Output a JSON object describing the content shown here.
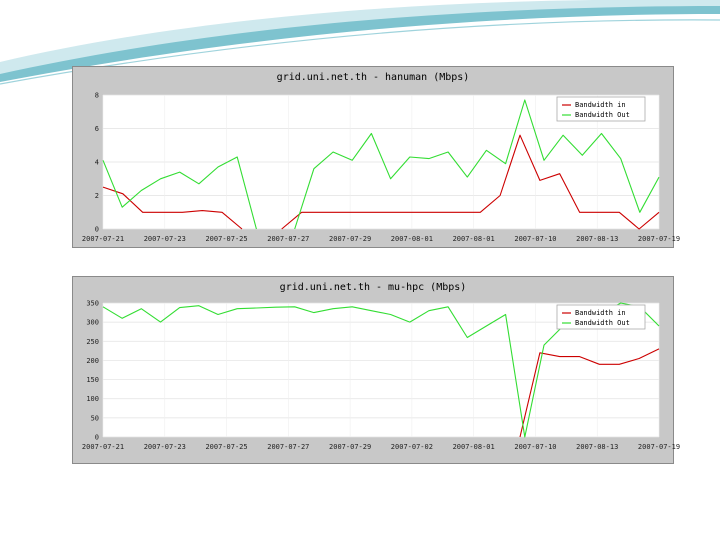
{
  "theme": {
    "deco_teal": "#7ec3cf",
    "deco_light": "#cfe9ee",
    "panel_bg": "#c8c8c8",
    "plot_bg": "#ffffff",
    "in_color": "#cc0000",
    "out_color": "#33dd33"
  },
  "chart_data": [
    {
      "type": "line",
      "title": "grid.uni.net.th - hanuman (Mbps)",
      "x_tick_labels": [
        "2007-07-21",
        "2007-07-23",
        "2007-07-25",
        "2007-07-27",
        "2007-07-29",
        "2007-08-01",
        "2007-08-01",
        "2007-07-10",
        "2007-08-13",
        "2007-07-19"
      ],
      "ylim": [
        0,
        8
      ],
      "y_ticks": [
        0,
        2,
        4,
        6,
        8
      ],
      "legend_position": "top-right",
      "series": [
        {
          "name": "Bandwidth in",
          "color": "#cc0000",
          "values": [
            2.5,
            2.1,
            1.0,
            1.0,
            1.0,
            1.1,
            1.0,
            0.0,
            null,
            0.0,
            1.0,
            1.0,
            1.0,
            1.0,
            1.0,
            1.0,
            1.0,
            1.0,
            1.0,
            1.0,
            2.0,
            5.6,
            2.9,
            3.3,
            1.0,
            1.0,
            1.0,
            0.0,
            1.0
          ]
        },
        {
          "name": "Bandwidth Out",
          "color": "#33dd33",
          "values": [
            4.1,
            1.3,
            2.3,
            3.0,
            3.4,
            2.7,
            3.7,
            4.3,
            0.0,
            null,
            0.0,
            3.6,
            4.6,
            4.1,
            5.7,
            3.0,
            4.3,
            4.2,
            4.6,
            3.1,
            4.7,
            3.9,
            7.7,
            4.1,
            5.6,
            4.4,
            5.7,
            4.2,
            1.0,
            3.1
          ]
        }
      ]
    },
    {
      "type": "line",
      "title": "grid.uni.net.th - mu-hpc (Mbps)",
      "x_tick_labels": [
        "2007-07-21",
        "2007-07-23",
        "2007-07-25",
        "2007-07-27",
        "2007-07-29",
        "2007-07-02",
        "2007-08-01",
        "2007-07-10",
        "2007-08-13",
        "2007-07-19"
      ],
      "ylim": [
        0,
        350
      ],
      "y_ticks": [
        0,
        50,
        100,
        150,
        200,
        250,
        300,
        350
      ],
      "legend_position": "top-right",
      "series": [
        {
          "name": "Bandwidth in",
          "color": "#cc0000",
          "values": [
            null,
            null,
            null,
            null,
            null,
            null,
            null,
            null,
            null,
            null,
            null,
            null,
            null,
            null,
            null,
            null,
            null,
            null,
            null,
            null,
            null,
            0,
            220,
            210,
            210,
            190,
            190,
            205,
            230
          ]
        },
        {
          "name": "Bandwidth Out",
          "color": "#33dd33",
          "values": [
            340,
            310,
            335,
            300,
            338,
            343,
            320,
            335,
            337,
            339,
            340,
            325,
            335,
            340,
            330,
            320,
            300,
            330,
            340,
            260,
            290,
            320,
            0,
            240,
            290,
            310,
            320,
            350,
            340,
            290
          ]
        }
      ]
    }
  ]
}
